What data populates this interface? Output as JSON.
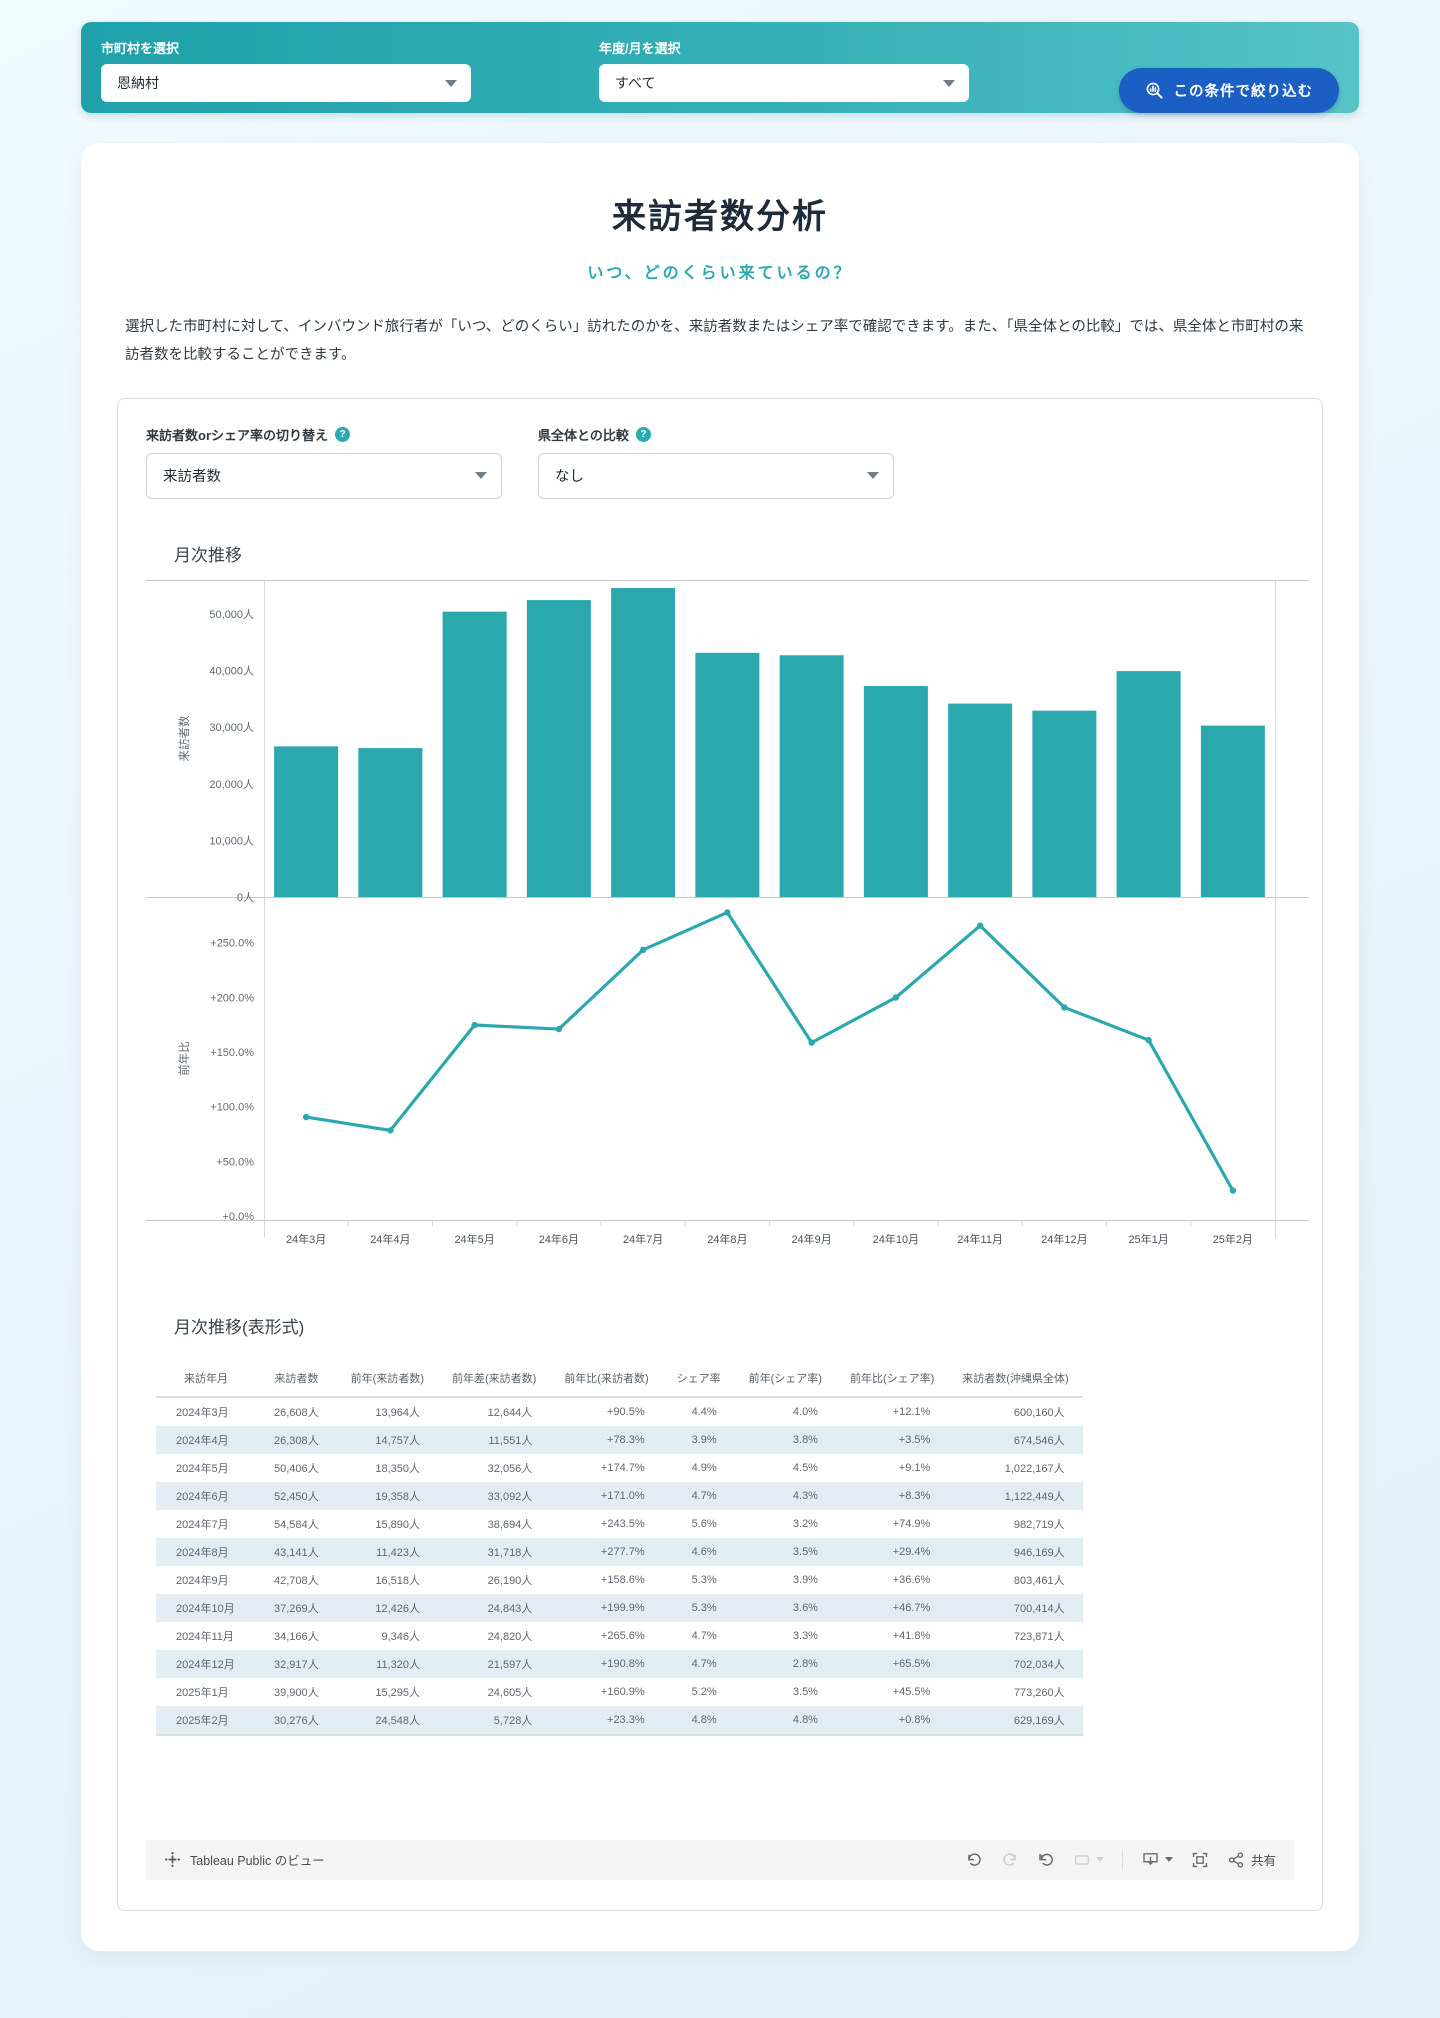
{
  "filters": {
    "municipality": {
      "label": "市町村を選択",
      "value": "恩納村"
    },
    "period": {
      "label": "年度/月を選択",
      "value": "すべて"
    },
    "apply_button": "この条件で絞り込む"
  },
  "page": {
    "title": "来訪者数分析",
    "subtitle": "いつ、どのくらい来ているの？",
    "description": "選択した市町村に対して、インバウンド旅行者が「いつ、どのくらい」訪れたのかを、来訪者数またはシェア率で確認できます。また、「県全体との比較」では、県全体と市町村の来訪者数を比較することができます。"
  },
  "controls": {
    "metric": {
      "label": "来訪者数orシェア率の切り替え",
      "value": "来訪者数"
    },
    "comparison": {
      "label": "県全体との比較",
      "value": "なし"
    }
  },
  "icons": {
    "help": "?"
  },
  "chart_section": {
    "title": "月次推移"
  },
  "chart_data": {
    "type": "combo",
    "title": "月次推移",
    "categories": [
      "24年3月",
      "24年4月",
      "24年5月",
      "24年6月",
      "24年7月",
      "24年8月",
      "24年9月",
      "24年10月",
      "24年11月",
      "24年12月",
      "25年1月",
      "25年2月"
    ],
    "series": [
      {
        "name": "来訪者数",
        "type": "bar",
        "color": "#2ba7ae",
        "axis_label": "来訪者数",
        "values": [
          26608,
          26308,
          50406,
          52450,
          54584,
          43141,
          42708,
          37269,
          34166,
          32917,
          39900,
          30276
        ],
        "ylim": [
          0,
          56000
        ],
        "yticks": {
          "values": [
            0,
            10000,
            20000,
            30000,
            40000,
            50000
          ],
          "labels": [
            "0人",
            "10,000人",
            "20,000人",
            "30,000人",
            "40,000人",
            "50,000人"
          ]
        }
      },
      {
        "name": "前年比",
        "type": "line",
        "color": "#2ba7ae",
        "axis_label": "前年比",
        "values": [
          90.5,
          78.3,
          174.7,
          171.0,
          243.5,
          277.7,
          158.6,
          199.9,
          265.6,
          190.8,
          160.9,
          23.3
        ],
        "ylim": [
          0,
          290
        ],
        "yticks": {
          "values": [
            0,
            50,
            100,
            150,
            200,
            250
          ],
          "labels": [
            "+0.0%",
            "+50.0%",
            "+100.0%",
            "+150.0%",
            "+200.0%",
            "+250.0%"
          ]
        }
      }
    ]
  },
  "table_section": {
    "title": "月次推移(表形式)",
    "columns": [
      "来訪年月",
      "来訪者数",
      "前年(来訪者数)",
      "前年差(来訪者数)",
      "前年比(来訪者数)",
      "シェア率",
      "前年(シェア率)",
      "前年比(シェア率)",
      "来訪者数(沖縄県全体)"
    ],
    "rows": [
      [
        "2024年3月",
        "26,608人",
        "13,964人",
        "12,644人",
        "+90.5%",
        "4.4%",
        "4.0%",
        "+12.1%",
        "600,160人"
      ],
      [
        "2024年4月",
        "26,308人",
        "14,757人",
        "11,551人",
        "+78.3%",
        "3.9%",
        "3.8%",
        "+3.5%",
        "674,546人"
      ],
      [
        "2024年5月",
        "50,406人",
        "18,350人",
        "32,056人",
        "+174.7%",
        "4.9%",
        "4.5%",
        "+9.1%",
        "1,022,167人"
      ],
      [
        "2024年6月",
        "52,450人",
        "19,358人",
        "33,092人",
        "+171.0%",
        "4.7%",
        "4.3%",
        "+8.3%",
        "1,122,449人"
      ],
      [
        "2024年7月",
        "54,584人",
        "15,890人",
        "38,694人",
        "+243.5%",
        "5.6%",
        "3.2%",
        "+74.9%",
        "982,719人"
      ],
      [
        "2024年8月",
        "43,141人",
        "11,423人",
        "31,718人",
        "+277.7%",
        "4.6%",
        "3.5%",
        "+29.4%",
        "946,169人"
      ],
      [
        "2024年9月",
        "42,708人",
        "16,518人",
        "26,190人",
        "+158.6%",
        "5.3%",
        "3.9%",
        "+36.6%",
        "803,461人"
      ],
      [
        "2024年10月",
        "37,269人",
        "12,426人",
        "24,843人",
        "+199.9%",
        "5.3%",
        "3.6%",
        "+46.7%",
        "700,414人"
      ],
      [
        "2024年11月",
        "34,166人",
        "9,346人",
        "24,820人",
        "+265.6%",
        "4.7%",
        "3.3%",
        "+41.8%",
        "723,871人"
      ],
      [
        "2024年12月",
        "32,917人",
        "11,320人",
        "21,597人",
        "+190.8%",
        "4.7%",
        "2.8%",
        "+65.5%",
        "702,034人"
      ],
      [
        "2025年1月",
        "39,900人",
        "15,295人",
        "24,605人",
        "+160.9%",
        "5.2%",
        "3.5%",
        "+45.5%",
        "773,260人"
      ],
      [
        "2025年2月",
        "30,276人",
        "24,548人",
        "5,728人",
        "+23.3%",
        "4.8%",
        "4.8%",
        "+0.8%",
        "629,169人"
      ]
    ]
  },
  "footer": {
    "brand": "Tableau Public のビュー",
    "share_label": "共有"
  },
  "colors": {
    "accent_teal": "#2ba7ae",
    "topbar_gradient_start": "#1fa1a9",
    "topbar_gradient_end": "#56c3c7",
    "button_blue": "#1b5ec4",
    "subtitle_teal": "#2aa7b0",
    "table_stripe": "#e2edf3",
    "title_navy": "#1d2b3a"
  }
}
